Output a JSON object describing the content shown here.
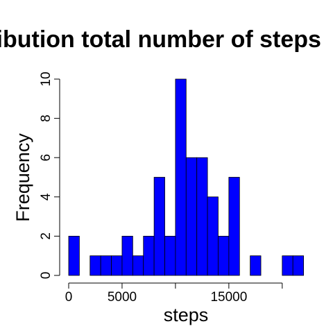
{
  "chart_data": {
    "type": "bar",
    "title": "Distribution total number of steps",
    "xlabel": "steps",
    "ylabel": "Frequency",
    "xlim": [
      0,
      22000
    ],
    "ylim": [
      0,
      10
    ],
    "bin_width": 1000,
    "x_ticks": [
      0,
      5000,
      10000,
      15000,
      20000
    ],
    "x_tick_labels": [
      "0",
      "5000",
      "",
      "15000",
      ""
    ],
    "y_ticks": [
      0,
      2,
      4,
      6,
      8,
      10
    ],
    "y_tick_labels": [
      "0",
      "2",
      "4",
      "6",
      "8",
      "10"
    ],
    "bar_color": "#0000ff",
    "bins": [
      {
        "start": 0,
        "end": 1000,
        "count": 2
      },
      {
        "start": 1000,
        "end": 2000,
        "count": 0
      },
      {
        "start": 2000,
        "end": 3000,
        "count": 1
      },
      {
        "start": 3000,
        "end": 4000,
        "count": 1
      },
      {
        "start": 4000,
        "end": 5000,
        "count": 1
      },
      {
        "start": 5000,
        "end": 6000,
        "count": 2
      },
      {
        "start": 6000,
        "end": 7000,
        "count": 1
      },
      {
        "start": 7000,
        "end": 8000,
        "count": 2
      },
      {
        "start": 8000,
        "end": 9000,
        "count": 5
      },
      {
        "start": 9000,
        "end": 10000,
        "count": 2
      },
      {
        "start": 10000,
        "end": 11000,
        "count": 10
      },
      {
        "start": 11000,
        "end": 12000,
        "count": 6
      },
      {
        "start": 12000,
        "end": 13000,
        "count": 6
      },
      {
        "start": 13000,
        "end": 14000,
        "count": 4
      },
      {
        "start": 14000,
        "end": 15000,
        "count": 2
      },
      {
        "start": 15000,
        "end": 16000,
        "count": 5
      },
      {
        "start": 16000,
        "end": 17000,
        "count": 0
      },
      {
        "start": 17000,
        "end": 18000,
        "count": 1
      },
      {
        "start": 18000,
        "end": 19000,
        "count": 0
      },
      {
        "start": 19000,
        "end": 20000,
        "count": 0
      },
      {
        "start": 20000,
        "end": 21000,
        "count": 1
      },
      {
        "start": 21000,
        "end": 22000,
        "count": 1
      }
    ]
  }
}
